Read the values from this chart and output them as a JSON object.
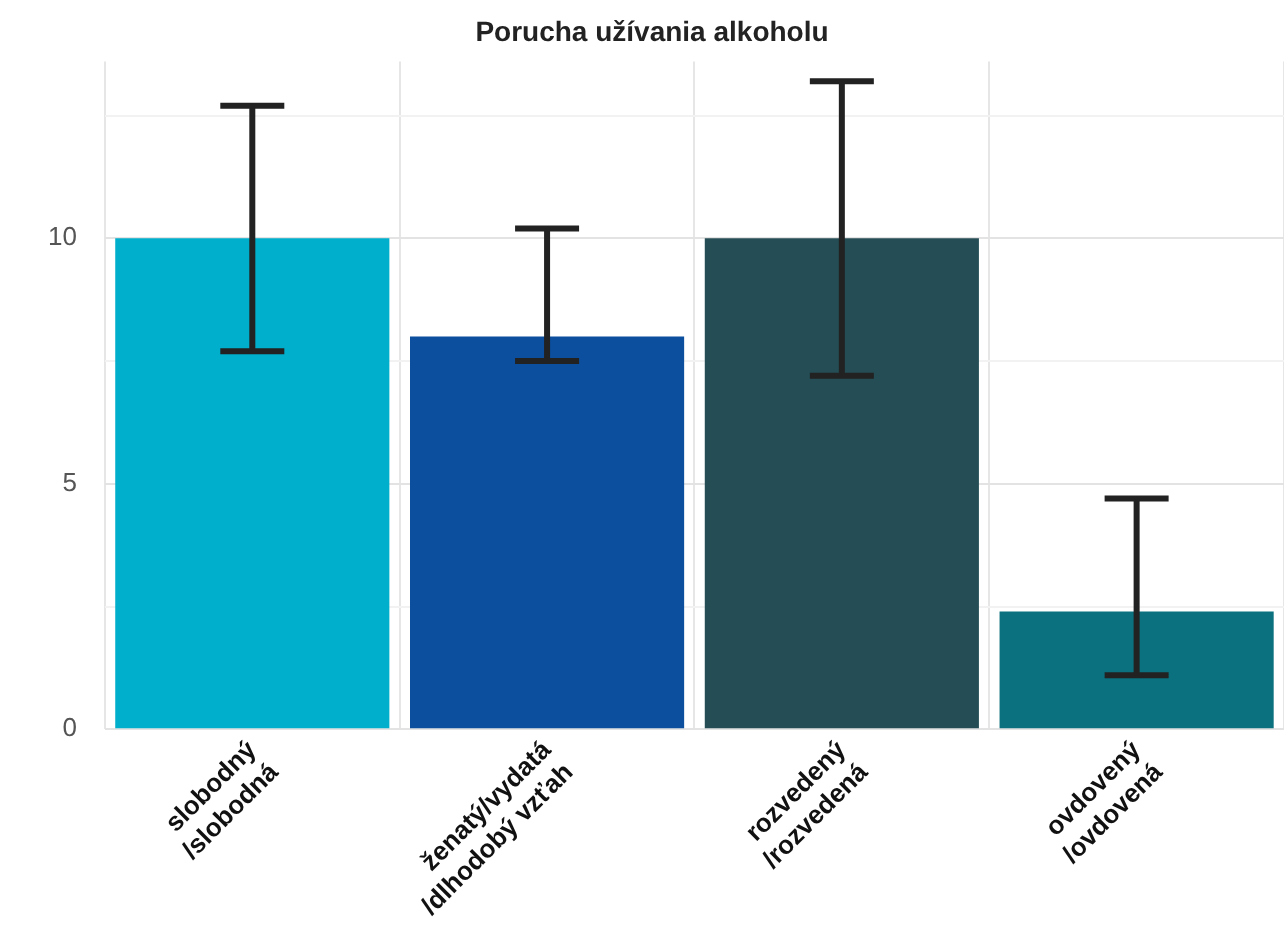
{
  "chart_data": {
    "type": "bar",
    "title": "Porucha užívania alkoholu",
    "categories": [
      "slobodný\n/slobodná",
      "ženatý/vydatá\n/dlhodobý vzťah",
      "rozvedený\n/rozvedená",
      "ovdovený\n/ovdovená"
    ],
    "values": [
      10,
      8,
      10,
      2.4
    ],
    "colors": [
      "#00afcb",
      "#0b4f9e",
      "#244d55",
      "#0b717e"
    ],
    "errors": [
      [
        7.7,
        12.7
      ],
      [
        7.5,
        10.2
      ],
      [
        7.2,
        13.2
      ],
      [
        1.1,
        4.7
      ]
    ],
    "ylim": [
      0,
      13.6
    ],
    "yticks": [
      0,
      {
        "value": 2.5,
        "label": null
      },
      5,
      {
        "value": 7.5,
        "label": null
      },
      10,
      {
        "value": 12.5,
        "label": null
      }
    ],
    "grid": true
  }
}
